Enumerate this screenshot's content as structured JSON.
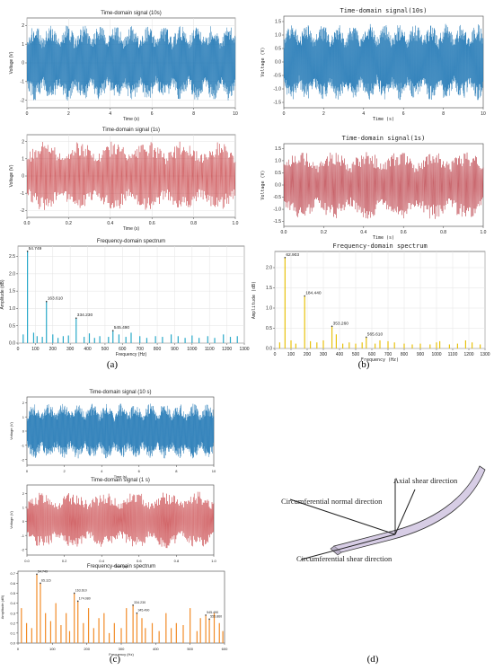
{
  "captions": {
    "a": "(a)",
    "b": "(b)",
    "c": "(c)",
    "d": "(d)"
  },
  "diagram": {
    "axial": "Axial shear direction",
    "normal": "Circumferential normal direction",
    "shear": "Circumferential shear direction"
  },
  "chart_data": [
    {
      "id": "a1",
      "type": "line",
      "title": "Time-domain signal (10s)",
      "xlabel": "Time (s)",
      "ylabel": "Voltage (V)",
      "xlim": [
        0,
        10
      ],
      "ylim": [
        -2.4,
        2.4
      ],
      "xticks": [
        0,
        2,
        4,
        6,
        8,
        10
      ],
      "yticks": [
        -2,
        -1,
        0,
        1,
        2
      ],
      "color": "#1f77b4",
      "amplitude": 2.2,
      "grid": true
    },
    {
      "id": "a2",
      "type": "line",
      "title": "Time-domain signal (1s)",
      "xlabel": "Time (s)",
      "ylabel": "Voltage (V)",
      "xlim": [
        0,
        1
      ],
      "ylim": [
        -2.4,
        2.4
      ],
      "xticks": [
        "0.0",
        "0.2",
        "0.4",
        "0.6",
        "0.8",
        "1.0"
      ],
      "yticks": [
        -2,
        -1,
        0,
        1,
        2
      ],
      "color": "#c0282d",
      "amplitude": 2.2,
      "grid": true
    },
    {
      "id": "a3",
      "type": "bar",
      "title": "Frequency-domain spectrum",
      "xlabel": "Frequency (Hz)",
      "ylabel": "Amplitude (dB)",
      "xlim": [
        0,
        1300
      ],
      "ylim": [
        0,
        2.8
      ],
      "xticks": [
        0,
        100,
        200,
        300,
        400,
        500,
        600,
        700,
        800,
        900,
        1000,
        1100,
        1200,
        1300
      ],
      "yticks": [
        "0.0",
        "0.5",
        "1.0",
        "1.5",
        "2.0",
        "2.5"
      ],
      "color": "#2aa9c9",
      "grid": true,
      "peaks": [
        {
          "x": 54.749,
          "y": 2.65,
          "label": "54.749"
        },
        {
          "x": 163.61,
          "y": 1.2,
          "label": "163.610"
        },
        {
          "x": 334.23,
          "y": 0.72,
          "label": "334.230"
        },
        {
          "x": 545.49,
          "y": 0.36,
          "label": "545.490"
        }
      ],
      "bars": [
        [
          30,
          0.25
        ],
        [
          90,
          0.3
        ],
        [
          110,
          0.2
        ],
        [
          140,
          0.18
        ],
        [
          200,
          0.25
        ],
        [
          230,
          0.15
        ],
        [
          260,
          0.2
        ],
        [
          290,
          0.22
        ],
        [
          380,
          0.18
        ],
        [
          410,
          0.28
        ],
        [
          440,
          0.15
        ],
        [
          470,
          0.2
        ],
        [
          520,
          0.18
        ],
        [
          580,
          0.25
        ],
        [
          620,
          0.18
        ],
        [
          650,
          0.3
        ],
        [
          700,
          0.2
        ],
        [
          740,
          0.15
        ],
        [
          790,
          0.2
        ],
        [
          830,
          0.18
        ],
        [
          880,
          0.25
        ],
        [
          920,
          0.2
        ],
        [
          960,
          0.15
        ],
        [
          1000,
          0.22
        ],
        [
          1040,
          0.15
        ],
        [
          1090,
          0.2
        ],
        [
          1130,
          0.15
        ],
        [
          1180,
          0.25
        ],
        [
          1220,
          0.18
        ],
        [
          1260,
          0.2
        ]
      ]
    },
    {
      "id": "b1",
      "type": "line",
      "title": "Time-domain signal(10s)",
      "xlabel": "Time (s)",
      "ylabel": "Voltage (V)",
      "xlim": [
        0,
        10
      ],
      "ylim": [
        -1.7,
        1.7
      ],
      "xticks": [
        0,
        2,
        4,
        6,
        8,
        10
      ],
      "yticks": [
        "-1.5",
        "-1.0",
        "-0.5",
        "0.0",
        "0.5",
        "1.0",
        "1.5"
      ],
      "color": "#1f77b4",
      "amplitude": 1.55,
      "grid": false
    },
    {
      "id": "b2",
      "type": "line",
      "title": "Time-domain signal(1s)",
      "xlabel": "Time (s)",
      "ylabel": "Voltage (V)",
      "xlim": [
        0,
        1
      ],
      "ylim": [
        -1.7,
        1.7
      ],
      "xticks": [
        "0.0",
        "0.2",
        "0.4",
        "0.6",
        "0.8",
        "1.0"
      ],
      "yticks": [
        "-1.5",
        "-1.0",
        "-0.5",
        "0.0",
        "0.5",
        "1.0",
        "1.5"
      ],
      "color": "#b0202a",
      "amplitude": 1.55,
      "grid": false
    },
    {
      "id": "b3",
      "type": "bar",
      "title": "Frequency-domain spectrum",
      "xlabel": "Frequency (Hz)",
      "ylabel": "Amplitude (dB)",
      "xlim": [
        0,
        1300
      ],
      "ylim": [
        0,
        2.4
      ],
      "xticks": [
        0,
        100,
        200,
        300,
        400,
        500,
        600,
        700,
        800,
        900,
        1000,
        1100,
        1200,
        1300
      ],
      "yticks": [
        "0.0",
        "0.5",
        "1.0",
        "1.5",
        "2.0"
      ],
      "color": "#e8c20e",
      "grid": true,
      "peaks": [
        {
          "x": 62.903,
          "y": 2.25,
          "label": "62.903"
        },
        {
          "x": 184.44,
          "y": 1.3,
          "label": "184.440"
        },
        {
          "x": 353.26,
          "y": 0.55,
          "label": "353.260"
        },
        {
          "x": 565.61,
          "y": 0.28,
          "label": "565.610"
        }
      ],
      "bars": [
        [
          30,
          0.15
        ],
        [
          100,
          0.2
        ],
        [
          130,
          0.12
        ],
        [
          220,
          0.18
        ],
        [
          260,
          0.15
        ],
        [
          300,
          0.2
        ],
        [
          380,
          0.35
        ],
        [
          420,
          0.12
        ],
        [
          460,
          0.15
        ],
        [
          500,
          0.12
        ],
        [
          540,
          0.15
        ],
        [
          620,
          0.12
        ],
        [
          650,
          0.2
        ],
        [
          700,
          0.18
        ],
        [
          740,
          0.15
        ],
        [
          800,
          0.12
        ],
        [
          850,
          0.1
        ],
        [
          900,
          0.12
        ],
        [
          960,
          0.1
        ],
        [
          1000,
          0.15
        ],
        [
          1020,
          0.18
        ],
        [
          1080,
          0.1
        ],
        [
          1130,
          0.12
        ],
        [
          1180,
          0.2
        ],
        [
          1220,
          0.15
        ],
        [
          1270,
          0.1
        ]
      ]
    },
    {
      "id": "c1",
      "type": "line",
      "title": "Time-domain signal (10 s)",
      "xlabel": "Time (s)",
      "ylabel": "Voltage (V)",
      "xlim": [
        0,
        10
      ],
      "ylim": [
        -2.4,
        2.4
      ],
      "xticks": [
        0,
        2,
        4,
        6,
        8,
        10
      ],
      "yticks": [
        -2,
        -1,
        0,
        1,
        2
      ],
      "color": "#1f77b4",
      "amplitude": 2.1,
      "grid": false
    },
    {
      "id": "c2",
      "type": "line",
      "title": "Time-domain signal (1 s)",
      "xlabel": "Time (s)",
      "ylabel": "Voltage (V)",
      "xlim": [
        0,
        1
      ],
      "ylim": [
        -2.4,
        2.6
      ],
      "xticks": [
        "0.0",
        "0.2",
        "0.4",
        "0.6",
        "0.8",
        "1.0"
      ],
      "yticks": [
        -2,
        -1,
        0,
        1,
        2
      ],
      "color": "#c0282d",
      "amplitude": 2.2,
      "grid": false
    },
    {
      "id": "c3",
      "type": "bar",
      "title": "Frequency-domain spectrum",
      "xlabel": "Frequency (Hz)",
      "ylabel": "Amplitude (dB)",
      "xlim": [
        0,
        600
      ],
      "ylim": [
        0,
        0.72
      ],
      "xticks": [
        0,
        100,
        200,
        300,
        400,
        500,
        600
      ],
      "yticks": [
        "0.0",
        "0.1",
        "0.2",
        "0.3",
        "0.4",
        "0.5",
        "0.6",
        "0.7"
      ],
      "color": "#f28c28",
      "grid": false,
      "peaks": [
        {
          "x": 54.749,
          "y": 0.69,
          "label": "54.749"
        },
        {
          "x": 65.115,
          "y": 0.6,
          "label": "65.115"
        },
        {
          "x": 163.61,
          "y": 0.5,
          "label": "163.610"
        },
        {
          "x": 174.08,
          "y": 0.42,
          "label": "174.080"
        },
        {
          "x": 334.23,
          "y": 0.38,
          "label": "334.230"
        },
        {
          "x": 345.49,
          "y": 0.3,
          "label": "345.490"
        },
        {
          "x": 545.49,
          "y": 0.28,
          "label": "545.490"
        },
        {
          "x": 555.86,
          "y": 0.24,
          "label": "555.860"
        }
      ],
      "bars": [
        [
          10,
          0.35
        ],
        [
          25,
          0.2
        ],
        [
          40,
          0.15
        ],
        [
          80,
          0.3
        ],
        [
          95,
          0.22
        ],
        [
          110,
          0.4
        ],
        [
          125,
          0.18
        ],
        [
          140,
          0.3
        ],
        [
          150,
          0.12
        ],
        [
          190,
          0.2
        ],
        [
          205,
          0.35
        ],
        [
          220,
          0.15
        ],
        [
          235,
          0.25
        ],
        [
          250,
          0.3
        ],
        [
          265,
          0.1
        ],
        [
          280,
          0.2
        ],
        [
          300,
          0.15
        ],
        [
          315,
          0.35
        ],
        [
          360,
          0.25
        ],
        [
          370,
          0.15
        ],
        [
          390,
          0.2
        ],
        [
          410,
          0.12
        ],
        [
          430,
          0.3
        ],
        [
          445,
          0.15
        ],
        [
          460,
          0.2
        ],
        [
          480,
          0.18
        ],
        [
          500,
          0.35
        ],
        [
          520,
          0.12
        ],
        [
          530,
          0.25
        ],
        [
          570,
          0.3
        ],
        [
          585,
          0.2
        ],
        [
          595,
          0.12
        ]
      ]
    }
  ]
}
